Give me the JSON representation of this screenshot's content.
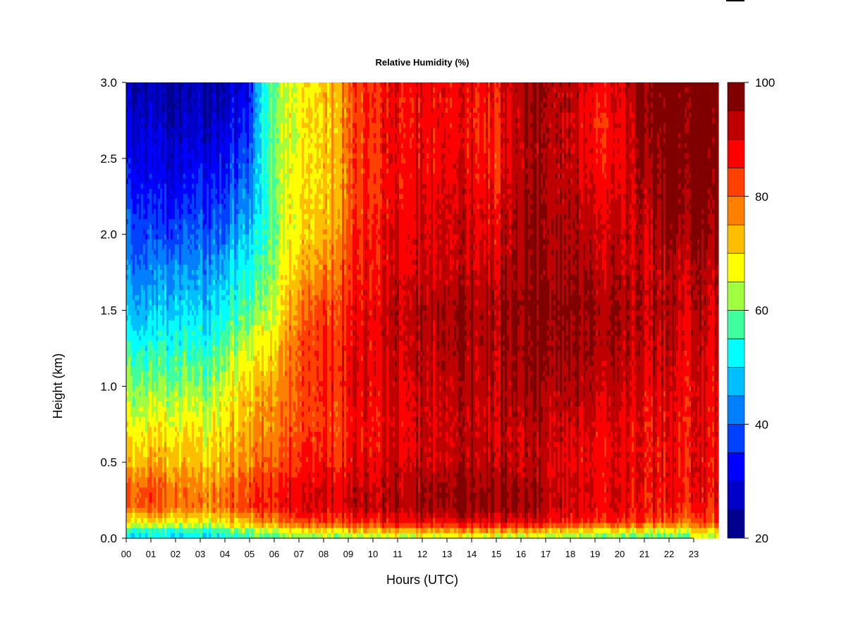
{
  "chart_data": {
    "type": "heatmap",
    "title": "Relative Humidity (%)",
    "xlabel": "Hours (UTC)",
    "ylabel": "Height (km)",
    "xlim": [
      0,
      24
    ],
    "ylim": [
      0.0,
      3.0
    ],
    "x_tick_labels": [
      "00",
      "01",
      "02",
      "03",
      "04",
      "05",
      "06",
      "07",
      "08",
      "09",
      "10",
      "11",
      "12",
      "13",
      "14",
      "15",
      "16",
      "17",
      "18",
      "19",
      "20",
      "21",
      "22",
      "23"
    ],
    "y_tick_labels": [
      "0.0",
      "0.5",
      "1.0",
      "1.5",
      "2.0",
      "2.5",
      "3.0"
    ],
    "colorbar": {
      "range": [
        20,
        100
      ],
      "step": 5,
      "tick_labels": [
        "20",
        "40",
        "60",
        "80",
        "100"
      ],
      "colors": [
        "#00008f",
        "#0000c8",
        "#0000ff",
        "#0040ff",
        "#0080ff",
        "#00bfff",
        "#00ffff",
        "#40ff9f",
        "#9fff40",
        "#ffff00",
        "#ffbf00",
        "#ff8000",
        "#ff4000",
        "#ff0000",
        "#bf0000",
        "#800000"
      ]
    },
    "profiles": {
      "heights_km": [
        0.0,
        0.05,
        0.1,
        0.2,
        0.3,
        0.5,
        0.75,
        1.0,
        1.25,
        1.5,
        1.75,
        2.0,
        2.25,
        2.5,
        2.75,
        3.0
      ],
      "hours": [
        0,
        1,
        2,
        3,
        4,
        5,
        5.5,
        6,
        7,
        8,
        9,
        10,
        11,
        12,
        13,
        14,
        15,
        16,
        17,
        18,
        19,
        20,
        21,
        22,
        23,
        24
      ],
      "values": [
        [
          50,
          55,
          68,
          80,
          82,
          73,
          68,
          62,
          56,
          48,
          44,
          40,
          36,
          33,
          30,
          27
        ],
        [
          52,
          58,
          70,
          82,
          83,
          75,
          68,
          62,
          55,
          48,
          43,
          38,
          34,
          31,
          28,
          26
        ],
        [
          50,
          56,
          68,
          78,
          80,
          74,
          68,
          62,
          56,
          50,
          45,
          38,
          33,
          29,
          26,
          24
        ],
        [
          48,
          55,
          66,
          76,
          76,
          70,
          66,
          60,
          53,
          48,
          43,
          38,
          34,
          30,
          26,
          24
        ],
        [
          52,
          60,
          70,
          80,
          80,
          74,
          70,
          66,
          60,
          53,
          48,
          42,
          37,
          33,
          29,
          26
        ],
        [
          55,
          62,
          74,
          84,
          84,
          78,
          74,
          72,
          66,
          60,
          55,
          50,
          44,
          40,
          36,
          32
        ],
        [
          56,
          64,
          76,
          86,
          86,
          80,
          76,
          74,
          68,
          62,
          58,
          54,
          52,
          52,
          52,
          52
        ],
        [
          58,
          66,
          78,
          86,
          86,
          82,
          78,
          76,
          72,
          66,
          64,
          62,
          62,
          62,
          62,
          62
        ],
        [
          58,
          68,
          80,
          88,
          88,
          84,
          80,
          80,
          80,
          76,
          72,
          68,
          68,
          66,
          66,
          66
        ],
        [
          60,
          70,
          82,
          90,
          90,
          86,
          82,
          84,
          84,
          82,
          76,
          72,
          70,
          70,
          70,
          70
        ],
        [
          60,
          72,
          84,
          92,
          92,
          88,
          86,
          88,
          88,
          86,
          84,
          82,
          80,
          80,
          80,
          80
        ],
        [
          62,
          74,
          86,
          93,
          93,
          90,
          88,
          90,
          90,
          90,
          88,
          88,
          86,
          86,
          86,
          86
        ],
        [
          62,
          75,
          87,
          94,
          94,
          91,
          90,
          91,
          92,
          93,
          90,
          90,
          88,
          88,
          88,
          88
        ],
        [
          62,
          75,
          88,
          95,
          95,
          92,
          91,
          92,
          93,
          94,
          91,
          91,
          89,
          88,
          88,
          88
        ],
        [
          63,
          76,
          88,
          96,
          96,
          92,
          91,
          92,
          94,
          95,
          92,
          91,
          90,
          89,
          88,
          88
        ],
        [
          63,
          76,
          89,
          97,
          97,
          93,
          92,
          93,
          94,
          95,
          92,
          91,
          90,
          88,
          87,
          88
        ],
        [
          63,
          76,
          89,
          97,
          97,
          93,
          92,
          93,
          94,
          94,
          92,
          90,
          88,
          85,
          86,
          88
        ],
        [
          62,
          75,
          88,
          95,
          95,
          92,
          92,
          94,
          96,
          97,
          95,
          95,
          94,
          93,
          94,
          94
        ],
        [
          62,
          74,
          88,
          94,
          94,
          92,
          93,
          95,
          97,
          98,
          96,
          96,
          95,
          95,
          95,
          95
        ],
        [
          60,
          72,
          86,
          92,
          92,
          90,
          92,
          95,
          97,
          98,
          96,
          95,
          94,
          93,
          93,
          94
        ],
        [
          58,
          70,
          84,
          90,
          90,
          89,
          90,
          93,
          95,
          96,
          94,
          92,
          90,
          88,
          86,
          88
        ],
        [
          58,
          70,
          84,
          90,
          90,
          89,
          90,
          92,
          94,
          95,
          93,
          92,
          90,
          88,
          88,
          90
        ],
        [
          58,
          68,
          82,
          88,
          88,
          88,
          88,
          90,
          92,
          93,
          92,
          92,
          94,
          96,
          97,
          98
        ],
        [
          56,
          66,
          80,
          86,
          88,
          88,
          88,
          90,
          92,
          93,
          93,
          96,
          98,
          99,
          99,
          99
        ],
        [
          62,
          70,
          80,
          86,
          88,
          88,
          88,
          89,
          90,
          92,
          93,
          96,
          98,
          99,
          99,
          99
        ],
        [
          64,
          72,
          82,
          86,
          88,
          88,
          88,
          89,
          90,
          92,
          93,
          96,
          98,
          99,
          99,
          99
        ]
      ]
    }
  }
}
